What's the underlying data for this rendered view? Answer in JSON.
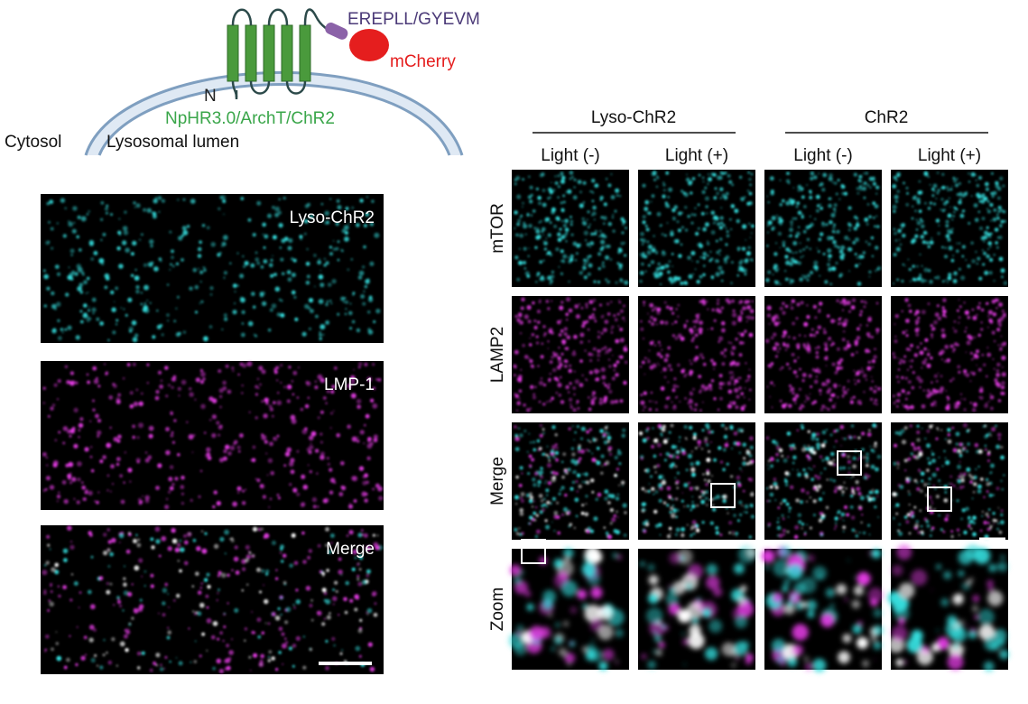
{
  "diagram": {
    "tag": "EREPLL/GYEVM",
    "fluor": "mCherry",
    "n_terminus": "N",
    "constructs": "NpHR3.0/ArchT/ChR2",
    "cytosol": "Cytosol",
    "lumen": "Lysosomal lumen"
  },
  "left_panels": [
    "Lyso-ChR2",
    "LMP-1",
    "Merge"
  ],
  "grid": {
    "groups": [
      "Lyso-ChR2",
      "ChR2"
    ],
    "conditions": [
      "Light (-)",
      "Light (+)",
      "Light (-)",
      "Light (+)"
    ],
    "rows": [
      "mTOR",
      "LAMP2",
      "Merge",
      "Zoom"
    ]
  }
}
